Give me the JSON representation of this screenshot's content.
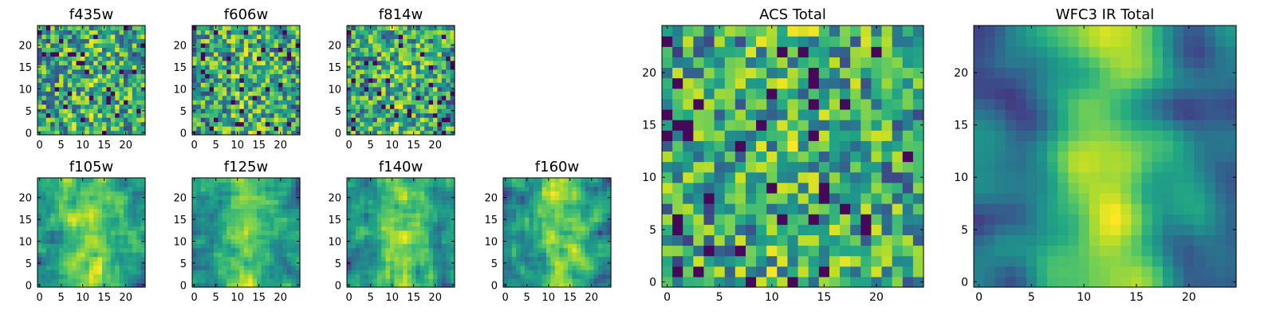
{
  "chart_data": [
    {
      "type": "heatmap",
      "title": "f435w",
      "colormap": "viridis",
      "grid_size": [
        25,
        25
      ],
      "xlim": [
        -0.5,
        24.5
      ],
      "ylim": [
        -0.5,
        24.5
      ],
      "x_ticks": [
        0,
        5,
        10,
        15,
        20
      ],
      "y_ticks": [
        0,
        5,
        10,
        15,
        20
      ],
      "texture": "noise",
      "seed": 11
    },
    {
      "type": "heatmap",
      "title": "f606w",
      "colormap": "viridis",
      "grid_size": [
        25,
        25
      ],
      "xlim": [
        -0.5,
        24.5
      ],
      "ylim": [
        -0.5,
        24.5
      ],
      "x_ticks": [
        0,
        5,
        10,
        15,
        20
      ],
      "y_ticks": [
        0,
        5,
        10,
        15,
        20
      ],
      "texture": "noise",
      "seed": 23
    },
    {
      "type": "heatmap",
      "title": "f814w",
      "colormap": "viridis",
      "grid_size": [
        25,
        25
      ],
      "xlim": [
        -0.5,
        24.5
      ],
      "ylim": [
        -0.5,
        24.5
      ],
      "x_ticks": [
        0,
        5,
        10,
        15,
        20
      ],
      "y_ticks": [
        0,
        5,
        10,
        15,
        20
      ],
      "texture": "noise",
      "seed": 37
    },
    {
      "type": "heatmap",
      "title": "f105w",
      "colormap": "viridis",
      "grid_size": [
        25,
        25
      ],
      "xlim": [
        -0.5,
        24.5
      ],
      "ylim": [
        -0.5,
        24.5
      ],
      "x_ticks": [
        0,
        5,
        10,
        15,
        20
      ],
      "y_ticks": [
        0,
        5,
        10,
        15,
        20
      ],
      "texture": "blobby",
      "seed": 41
    },
    {
      "type": "heatmap",
      "title": "f125w",
      "colormap": "viridis",
      "grid_size": [
        25,
        25
      ],
      "xlim": [
        -0.5,
        24.5
      ],
      "ylim": [
        -0.5,
        24.5
      ],
      "x_ticks": [
        0,
        5,
        10,
        15,
        20
      ],
      "y_ticks": [
        0,
        5,
        10,
        15,
        20
      ],
      "texture": "blobby",
      "seed": 53
    },
    {
      "type": "heatmap",
      "title": "f140w",
      "colormap": "viridis",
      "grid_size": [
        25,
        25
      ],
      "xlim": [
        -0.5,
        24.5
      ],
      "ylim": [
        -0.5,
        24.5
      ],
      "x_ticks": [
        0,
        5,
        10,
        15,
        20
      ],
      "y_ticks": [
        0,
        5,
        10,
        15,
        20
      ],
      "texture": "blobby",
      "seed": 67
    },
    {
      "type": "heatmap",
      "title": "f160w",
      "colormap": "viridis",
      "grid_size": [
        25,
        25
      ],
      "xlim": [
        -0.5,
        24.5
      ],
      "ylim": [
        -0.5,
        24.5
      ],
      "x_ticks": [
        0,
        5,
        10,
        15,
        20
      ],
      "y_ticks": [
        0,
        5,
        10,
        15,
        20
      ],
      "texture": "blobby",
      "seed": 79
    },
    {
      "type": "heatmap",
      "title": "ACS Total",
      "colormap": "viridis",
      "grid_size": [
        25,
        25
      ],
      "xlim": [
        -0.5,
        24.5
      ],
      "ylim": [
        -0.5,
        24.5
      ],
      "x_ticks": [
        0,
        5,
        10,
        15,
        20
      ],
      "y_ticks": [
        0,
        5,
        10,
        15,
        20
      ],
      "texture": "noise",
      "seed": 83
    },
    {
      "type": "heatmap",
      "title": "WFC3 IR Total",
      "colormap": "viridis",
      "grid_size": [
        25,
        25
      ],
      "xlim": [
        -0.5,
        24.5
      ],
      "ylim": [
        -0.5,
        24.5
      ],
      "x_ticks": [
        0,
        5,
        10,
        15,
        20
      ],
      "y_ticks": [
        0,
        5,
        10,
        15,
        20
      ],
      "texture": "smooth",
      "seed": 97
    }
  ]
}
